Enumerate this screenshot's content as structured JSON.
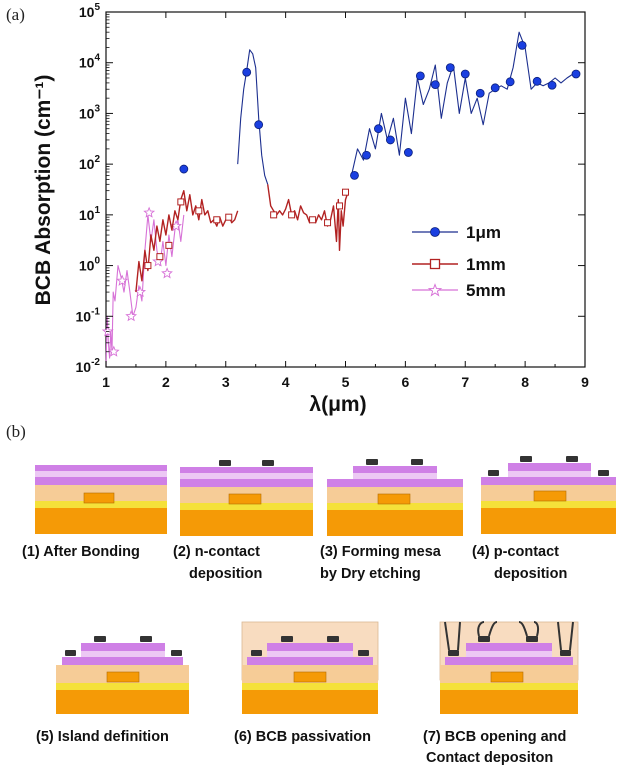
{
  "panel_a_label": "(a)",
  "panel_b_label": "(b)",
  "colors": {
    "series_1um": "#1c2f8f",
    "marker_1um": "#1a3fe0",
    "series_1mm": "#b22222",
    "series_5mm": "#d772d7",
    "substrate": "#f59a06",
    "yellow_layer": "#f5e13a",
    "light_orange": "#f6cc97",
    "purple_layer": "#cf80e6",
    "light_purple": "#ecc8f4",
    "contact": "#333333",
    "bcb": "#f8dcc0"
  },
  "chart_data": {
    "type": "line",
    "xlabel": "λ(μm)",
    "ylabel": "BCB Absorption (cm⁻¹)",
    "xlim": [
      1,
      9
    ],
    "ylim": [
      0.01,
      100000
    ],
    "yscale": "log",
    "xticks": [
      "1",
      "2",
      "3",
      "4",
      "5",
      "6",
      "7",
      "8",
      "9"
    ],
    "yticks": [
      {
        "base": "10",
        "exp": "-2"
      },
      {
        "base": "10",
        "exp": "-1"
      },
      {
        "base": "10",
        "exp": "0"
      },
      {
        "base": "10",
        "exp": "1"
      },
      {
        "base": "10",
        "exp": "2"
      },
      {
        "base": "10",
        "exp": "3"
      },
      {
        "base": "10",
        "exp": "4"
      },
      {
        "base": "10",
        "exp": "5"
      }
    ],
    "legend_position": "center-right",
    "series": [
      {
        "name": "1μm",
        "marker": "circle",
        "points": [
          [
            3.2,
            100
          ],
          [
            3.25,
            800
          ],
          [
            3.3,
            3000
          ],
          [
            3.35,
            7000
          ],
          [
            3.4,
            18000
          ],
          [
            3.45,
            15000
          ],
          [
            3.5,
            8000
          ],
          [
            3.55,
            800
          ],
          [
            3.6,
            150
          ],
          [
            3.65,
            60
          ],
          [
            3.7,
            40
          ],
          [
            5.1,
            60
          ],
          [
            5.2,
            200
          ],
          [
            5.3,
            120
          ],
          [
            5.4,
            500
          ],
          [
            5.5,
            200
          ],
          [
            5.6,
            1000
          ],
          [
            5.7,
            300
          ],
          [
            5.8,
            800
          ],
          [
            5.9,
            150
          ],
          [
            6.0,
            2000
          ],
          [
            6.1,
            400
          ],
          [
            6.2,
            5000
          ],
          [
            6.3,
            1500
          ],
          [
            6.4,
            3000
          ],
          [
            6.5,
            9000
          ],
          [
            6.6,
            800
          ],
          [
            6.7,
            4000
          ],
          [
            6.8,
            9000
          ],
          [
            6.9,
            1000
          ],
          [
            7.0,
            5000
          ],
          [
            7.1,
            1000
          ],
          [
            7.2,
            2000
          ],
          [
            7.3,
            600
          ],
          [
            7.4,
            2500
          ],
          [
            7.5,
            3000
          ],
          [
            7.6,
            3500
          ],
          [
            7.7,
            3000
          ],
          [
            7.8,
            8000
          ],
          [
            7.9,
            40000
          ],
          [
            8.0,
            20000
          ],
          [
            8.1,
            3000
          ],
          [
            8.2,
            4000
          ],
          [
            8.3,
            3500
          ],
          [
            8.4,
            4000
          ],
          [
            8.5,
            5000
          ],
          [
            8.6,
            4000
          ],
          [
            8.7,
            5000
          ],
          [
            8.8,
            6000
          ],
          [
            8.9,
            5500
          ]
        ],
        "marker_points": [
          [
            2.3,
            80
          ],
          [
            3.35,
            6500
          ],
          [
            3.55,
            600
          ],
          [
            5.15,
            60
          ],
          [
            5.35,
            150
          ],
          [
            5.55,
            500
          ],
          [
            5.75,
            300
          ],
          [
            6.05,
            170
          ],
          [
            6.25,
            5500
          ],
          [
            6.5,
            3700
          ],
          [
            6.75,
            8000
          ],
          [
            7.0,
            6000
          ],
          [
            7.25,
            2500
          ],
          [
            7.5,
            3200
          ],
          [
            7.75,
            4200
          ],
          [
            7.95,
            22000
          ],
          [
            8.2,
            4300
          ],
          [
            8.45,
            3600
          ],
          [
            8.85,
            6000
          ]
        ]
      },
      {
        "name": "1mm",
        "marker": "square",
        "points": [
          [
            1.5,
            0.3
          ],
          [
            1.55,
            1.2
          ],
          [
            1.6,
            0.5
          ],
          [
            1.65,
            2.0
          ],
          [
            1.7,
            0.8
          ],
          [
            1.75,
            4.0
          ],
          [
            1.8,
            2.0
          ],
          [
            1.85,
            6.0
          ],
          [
            1.9,
            3.0
          ],
          [
            1.95,
            8.0
          ],
          [
            2.0,
            4.0
          ],
          [
            2.05,
            10.0
          ],
          [
            2.1,
            5.0
          ],
          [
            2.15,
            12.0
          ],
          [
            2.2,
            8.0
          ],
          [
            2.25,
            20.0
          ],
          [
            2.3,
            30.0
          ],
          [
            2.35,
            12.0
          ],
          [
            2.4,
            25.0
          ],
          [
            2.45,
            10.0
          ],
          [
            2.5,
            15.0
          ],
          [
            2.55,
            8.0
          ],
          [
            2.6,
            20.0
          ],
          [
            2.65,
            10.0
          ],
          [
            2.7,
            12.0
          ],
          [
            2.75,
            7.0
          ],
          [
            2.8,
            8.0
          ],
          [
            2.85,
            6.0
          ],
          [
            2.9,
            9.0
          ],
          [
            2.95,
            6.0
          ],
          [
            3.0,
            8.0
          ],
          [
            3.05,
            10.0
          ],
          [
            3.1,
            7.0
          ],
          [
            3.15,
            8.0
          ],
          [
            3.2,
            12.0
          ],
          [
            3.7,
            40.0
          ],
          [
            3.75,
            15.0
          ],
          [
            3.8,
            12.0
          ],
          [
            3.85,
            10.0
          ],
          [
            3.9,
            12.0
          ],
          [
            3.95,
            10.0
          ],
          [
            4.0,
            13.0
          ],
          [
            4.05,
            20.0
          ],
          [
            4.1,
            10.0
          ],
          [
            4.15,
            12.0
          ],
          [
            4.2,
            8.0
          ],
          [
            4.25,
            15.0
          ],
          [
            4.3,
            11.0
          ],
          [
            4.35,
            10.0
          ],
          [
            4.4,
            7.0
          ],
          [
            4.45,
            9.0
          ],
          [
            4.5,
            7.0
          ],
          [
            4.55,
            10.0
          ],
          [
            4.6,
            8.0
          ],
          [
            4.65,
            12.0
          ],
          [
            4.7,
            6.0
          ],
          [
            4.75,
            8.0
          ],
          [
            4.8,
            15.0
          ],
          [
            4.85,
            3.0
          ],
          [
            4.88,
            20.0
          ],
          [
            4.9,
            2.0
          ],
          [
            4.93,
            12.0
          ],
          [
            4.96,
            6.0
          ],
          [
            5.0,
            20.0
          ],
          [
            5.05,
            30.0
          ]
        ],
        "marker_points": [
          [
            1.7,
            1.0
          ],
          [
            1.9,
            1.5
          ],
          [
            2.05,
            2.5
          ],
          [
            2.25,
            18.0
          ],
          [
            2.55,
            12.0
          ],
          [
            2.85,
            8.0
          ],
          [
            3.05,
            9.0
          ],
          [
            3.8,
            10.0
          ],
          [
            4.1,
            10.0
          ],
          [
            4.45,
            8.0
          ],
          [
            4.7,
            7.0
          ],
          [
            4.9,
            15.0
          ],
          [
            5.0,
            28.0
          ]
        ]
      },
      {
        "name": "5mm",
        "marker": "star",
        "points": [
          [
            1.0,
            0.01
          ],
          [
            1.02,
            0.1
          ],
          [
            1.04,
            0.03
          ],
          [
            1.06,
            0.015
          ],
          [
            1.08,
            0.05
          ],
          [
            1.1,
            0.02
          ],
          [
            1.12,
            0.3
          ],
          [
            1.15,
            0.2
          ],
          [
            1.2,
            1.0
          ],
          [
            1.25,
            0.6
          ],
          [
            1.3,
            0.3
          ],
          [
            1.35,
            0.8
          ],
          [
            1.4,
            0.3
          ],
          [
            1.45,
            0.1
          ],
          [
            1.5,
            0.15
          ],
          [
            1.55,
            0.4
          ],
          [
            1.6,
            0.2
          ],
          [
            1.65,
            2.0
          ],
          [
            1.7,
            10.0
          ],
          [
            1.75,
            3.0
          ],
          [
            1.8,
            8.0
          ],
          [
            1.85,
            2.0
          ],
          [
            1.9,
            1.0
          ],
          [
            1.95,
            3.0
          ],
          [
            2.0,
            1.0
          ],
          [
            2.05,
            4.0
          ],
          [
            2.1,
            1.5
          ],
          [
            2.15,
            5.0
          ],
          [
            2.2,
            8.0
          ],
          [
            2.25,
            3.0
          ],
          [
            2.3,
            10.0
          ]
        ],
        "marker_points": [
          [
            1.03,
            0.05
          ],
          [
            1.13,
            0.02
          ],
          [
            1.27,
            0.5
          ],
          [
            1.42,
            0.1
          ],
          [
            1.57,
            0.3
          ],
          [
            1.72,
            11.0
          ],
          [
            1.87,
            1.2
          ],
          [
            2.02,
            0.7
          ],
          [
            2.17,
            6.0
          ]
        ]
      }
    ]
  },
  "steps": [
    {
      "line1": "(1) After Bonding",
      "line2": ""
    },
    {
      "line1": "(2) n-contact",
      "line2": "deposition"
    },
    {
      "line1": "(3) Forming mesa",
      "line2": "by Dry etching"
    },
    {
      "line1": "(4) p-contact",
      "line2": "deposition"
    },
    {
      "line1": "(5) Island definition",
      "line2": ""
    },
    {
      "line1": "(6) BCB passivation",
      "line2": ""
    },
    {
      "line1": "(7) BCB opening and",
      "line2": "Contact depositon"
    }
  ]
}
